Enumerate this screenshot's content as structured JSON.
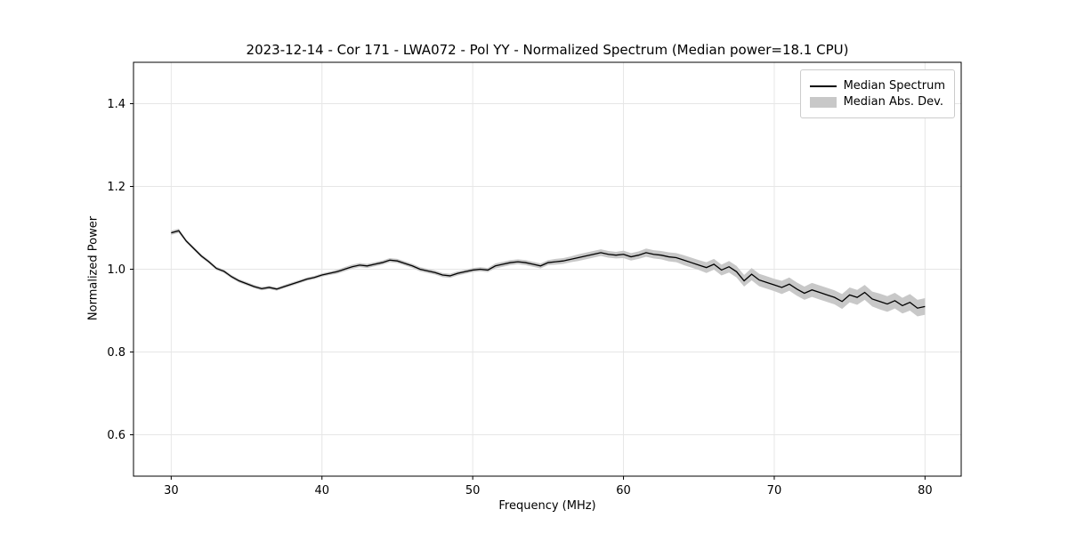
{
  "colors": {
    "line": "#000000",
    "band": "#c8c8c8",
    "grid": "#e6e6e6",
    "frame": "#000000",
    "background": "#ffffff"
  },
  "chart_data": {
    "type": "line",
    "title": "2023-12-14 - Cor 171 - LWA072 - Pol YY - Normalized Spectrum (Median power=18.1 CPU)",
    "xlabel": "Frequency (MHz)",
    "ylabel": "Normalized Power",
    "xlim": [
      27.5,
      82.4
    ],
    "ylim": [
      0.5,
      1.5
    ],
    "xticks": [
      30,
      40,
      50,
      60,
      70,
      80
    ],
    "xtick_labels": [
      "30",
      "40",
      "50",
      "60",
      "70",
      "80"
    ],
    "yticks": [
      0.6,
      0.8,
      1.0,
      1.2,
      1.4
    ],
    "ytick_labels": [
      "0.6",
      "0.8",
      "1.0",
      "1.2",
      "1.4"
    ],
    "grid": true,
    "legend_position": "upper right",
    "legend": [
      {
        "label": "Median Spectrum",
        "swatch": "line"
      },
      {
        "label": "Median Abs. Dev.",
        "swatch": "patch"
      }
    ],
    "x": [
      30,
      30.5,
      31,
      31.5,
      32,
      32.5,
      33,
      33.5,
      34,
      34.5,
      35,
      35.5,
      36,
      36.5,
      37,
      37.5,
      38,
      38.5,
      39,
      39.5,
      40,
      40.5,
      41,
      41.5,
      42,
      42.5,
      43,
      43.5,
      44,
      44.5,
      45,
      45.5,
      46,
      46.5,
      47,
      47.5,
      48,
      48.5,
      49,
      49.5,
      50,
      50.5,
      51,
      51.5,
      52,
      52.5,
      53,
      53.5,
      54,
      54.5,
      55,
      55.5,
      56,
      56.5,
      57,
      57.5,
      58,
      58.5,
      59,
      59.5,
      60,
      60.5,
      61,
      61.5,
      62,
      62.5,
      63,
      63.5,
      64,
      64.5,
      65,
      65.5,
      66,
      66.5,
      67,
      67.5,
      68,
      68.5,
      69,
      69.5,
      70,
      70.5,
      71,
      71.5,
      72,
      72.5,
      73,
      73.5,
      74,
      74.5,
      75,
      75.5,
      76,
      76.5,
      77,
      77.5,
      78,
      78.5,
      79,
      79.5,
      80
    ],
    "median": [
      1.088,
      1.093,
      1.068,
      1.05,
      1.032,
      1.018,
      1.002,
      0.995,
      0.982,
      0.972,
      0.965,
      0.958,
      0.953,
      0.956,
      0.952,
      0.958,
      0.964,
      0.97,
      0.976,
      0.98,
      0.986,
      0.99,
      0.994,
      1.0,
      1.006,
      1.01,
      1.008,
      1.012,
      1.016,
      1.022,
      1.02,
      1.014,
      1.008,
      1.0,
      0.996,
      0.992,
      0.986,
      0.984,
      0.99,
      0.994,
      0.998,
      1.0,
      0.998,
      1.008,
      1.012,
      1.016,
      1.018,
      1.016,
      1.012,
      1.008,
      1.016,
      1.018,
      1.02,
      1.024,
      1.028,
      1.032,
      1.036,
      1.04,
      1.036,
      1.034,
      1.036,
      1.03,
      1.034,
      1.04,
      1.036,
      1.034,
      1.03,
      1.028,
      1.022,
      1.016,
      1.01,
      1.004,
      1.012,
      0.998,
      1.006,
      0.994,
      0.972,
      0.988,
      0.974,
      0.968,
      0.962,
      0.956,
      0.964,
      0.952,
      0.942,
      0.95,
      0.944,
      0.938,
      0.932,
      0.922,
      0.938,
      0.932,
      0.944,
      0.928,
      0.922,
      0.916,
      0.924,
      0.912,
      0.92,
      0.906,
      0.91
    ],
    "mad": [
      0.005,
      0.005,
      0.004,
      0.004,
      0.004,
      0.004,
      0.004,
      0.004,
      0.004,
      0.004,
      0.004,
      0.004,
      0.004,
      0.004,
      0.004,
      0.004,
      0.004,
      0.004,
      0.004,
      0.004,
      0.004,
      0.004,
      0.005,
      0.005,
      0.005,
      0.005,
      0.005,
      0.005,
      0.005,
      0.005,
      0.005,
      0.005,
      0.005,
      0.005,
      0.005,
      0.005,
      0.005,
      0.005,
      0.005,
      0.005,
      0.005,
      0.005,
      0.005,
      0.006,
      0.006,
      0.006,
      0.006,
      0.006,
      0.006,
      0.006,
      0.006,
      0.007,
      0.007,
      0.007,
      0.008,
      0.008,
      0.008,
      0.008,
      0.008,
      0.008,
      0.009,
      0.009,
      0.009,
      0.01,
      0.01,
      0.01,
      0.011,
      0.011,
      0.012,
      0.012,
      0.012,
      0.013,
      0.013,
      0.013,
      0.014,
      0.014,
      0.014,
      0.015,
      0.015,
      0.015,
      0.015,
      0.016,
      0.016,
      0.016,
      0.016,
      0.017,
      0.017,
      0.017,
      0.017,
      0.018,
      0.018,
      0.018,
      0.018,
      0.018,
      0.019,
      0.019,
      0.019,
      0.019,
      0.02,
      0.02,
      0.02
    ]
  }
}
